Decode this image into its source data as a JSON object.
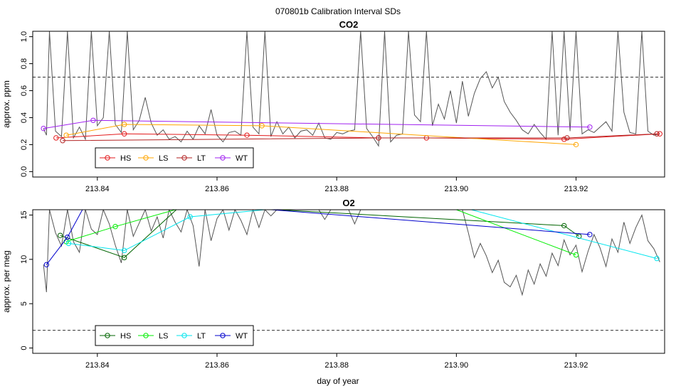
{
  "figure": {
    "title": "070801b   Calibration Interval SDs",
    "xlabel": "day of year",
    "x_ticks": [
      213.84,
      213.86,
      213.88,
      213.9,
      213.92
    ]
  },
  "chart_data": [
    {
      "type": "line",
      "title": "CO2",
      "ylabel": "approx. ppm",
      "xlim": [
        213.8292,
        213.9348
      ],
      "ylim": [
        -0.04,
        1.04
      ],
      "y_ticks": [
        0.0,
        0.2,
        0.4,
        0.6,
        0.8,
        1.0
      ],
      "y_tick_labels": [
        "0.0",
        "0.2",
        "0.4",
        "0.6",
        "0.8",
        "1.0"
      ],
      "threshold": 0.7,
      "legend_position": "bottom-left",
      "trace": {
        "name": "",
        "color": "#555555",
        "x": [
          213.831,
          213.8315,
          213.832,
          213.833,
          213.834,
          213.835,
          213.836,
          213.837,
          213.838,
          213.839,
          213.84,
          213.841,
          213.842,
          213.843,
          213.844,
          213.845,
          213.846,
          213.847,
          213.848,
          213.849,
          213.85,
          213.851,
          213.852,
          213.853,
          213.854,
          213.855,
          213.856,
          213.857,
          213.858,
          213.859,
          213.86,
          213.861,
          213.862,
          213.863,
          213.864,
          213.865,
          213.866,
          213.867,
          213.868,
          213.869,
          213.87,
          213.871,
          213.872,
          213.873,
          213.874,
          213.875,
          213.876,
          213.877,
          213.878,
          213.879,
          213.88,
          213.881,
          213.882,
          213.883,
          213.884,
          213.885,
          213.886,
          213.887,
          213.888,
          213.889,
          213.89,
          213.891,
          213.892,
          213.893,
          213.894,
          213.895,
          213.896,
          213.897,
          213.898,
          213.899,
          213.9,
          213.901,
          213.902,
          213.903,
          213.904,
          213.905,
          213.906,
          213.907,
          213.908,
          213.909,
          213.91,
          213.911,
          213.912,
          213.913,
          213.914,
          213.915,
          213.916,
          213.917,
          213.918,
          213.919,
          213.92,
          213.921,
          213.922,
          213.923,
          213.924,
          213.925,
          213.926,
          213.927,
          213.928,
          213.929,
          213.93,
          213.931,
          213.932,
          213.933,
          213.934
        ],
        "y": [
          0.32,
          0.27,
          1.04,
          0.3,
          0.26,
          1.04,
          0.25,
          0.33,
          0.24,
          1.04,
          0.34,
          0.4,
          1.04,
          0.35,
          0.29,
          1.04,
          0.31,
          0.38,
          0.55,
          0.36,
          0.27,
          0.31,
          0.24,
          0.26,
          0.22,
          0.3,
          0.24,
          0.34,
          0.28,
          0.46,
          0.27,
          0.22,
          0.29,
          0.3,
          0.27,
          1.04,
          0.33,
          0.28,
          1.04,
          0.26,
          0.37,
          0.28,
          0.33,
          0.25,
          0.3,
          0.31,
          0.27,
          0.36,
          0.25,
          0.24,
          0.29,
          0.28,
          0.3,
          0.31,
          1.04,
          0.32,
          0.26,
          0.19,
          1.04,
          0.22,
          0.27,
          0.28,
          1.04,
          0.42,
          0.37,
          1.04,
          0.34,
          0.5,
          0.39,
          0.6,
          0.36,
          0.67,
          0.41,
          0.58,
          0.69,
          0.74,
          0.62,
          0.7,
          0.52,
          0.44,
          0.38,
          0.31,
          0.28,
          0.35,
          0.29,
          0.24,
          1.04,
          0.27,
          1.04,
          0.3,
          1.04,
          0.28,
          0.31,
          0.29,
          0.33,
          0.37,
          0.3,
          1.04,
          0.44,
          0.29,
          0.28,
          1.04,
          0.3,
          0.27,
          0.28
        ]
      },
      "series": [
        {
          "name": "HS",
          "color": "#e31a1c",
          "x": [
            213.8331,
            213.8445,
            213.865,
            213.887,
            213.895,
            213.918,
            213.934
          ],
          "y": [
            0.25,
            0.28,
            0.27,
            0.25,
            0.25,
            0.24,
            0.28
          ]
        },
        {
          "name": "LS",
          "color": "#ffa500",
          "x": [
            213.8348,
            213.8445,
            213.8675,
            213.92
          ],
          "y": [
            0.27,
            0.35,
            0.34,
            0.2
          ]
        },
        {
          "name": "LT",
          "color": "#b22222",
          "x": [
            213.8342,
            213.887,
            213.9185,
            213.9335
          ],
          "y": [
            0.23,
            0.25,
            0.25,
            0.28
          ]
        },
        {
          "name": "WT",
          "color": "#a020f0",
          "x": [
            213.831,
            213.8393,
            213.9223
          ],
          "y": [
            0.32,
            0.38,
            0.33
          ]
        }
      ]
    },
    {
      "type": "line",
      "title": "O2",
      "ylabel": "approx. per meg",
      "xlim": [
        213.8292,
        213.9348
      ],
      "ylim": [
        -0.6,
        15.6
      ],
      "y_ticks": [
        0,
        5,
        10,
        15
      ],
      "y_tick_labels": [
        "0",
        "5",
        "10",
        "15"
      ],
      "threshold": 2,
      "legend_position": "bottom-left",
      "trace": {
        "name": "",
        "color": "#555555",
        "x": [
          213.831,
          213.8315,
          213.832,
          213.833,
          213.834,
          213.835,
          213.836,
          213.837,
          213.838,
          213.839,
          213.84,
          213.841,
          213.842,
          213.843,
          213.844,
          213.845,
          213.846,
          213.847,
          213.848,
          213.849,
          213.85,
          213.851,
          213.852,
          213.853,
          213.854,
          213.855,
          213.856,
          213.857,
          213.858,
          213.859,
          213.86,
          213.861,
          213.862,
          213.863,
          213.864,
          213.865,
          213.866,
          213.867,
          213.868,
          213.869,
          213.87,
          213.871,
          213.872,
          213.873,
          213.874,
          213.875,
          213.876,
          213.877,
          213.878,
          213.879,
          213.88,
          213.881,
          213.882,
          213.883,
          213.884,
          213.885,
          213.886,
          213.887,
          213.888,
          213.889,
          213.89,
          213.891,
          213.892,
          213.893,
          213.894,
          213.895,
          213.896,
          213.897,
          213.898,
          213.899,
          213.9,
          213.901,
          213.902,
          213.903,
          213.904,
          213.905,
          213.906,
          213.907,
          213.908,
          213.909,
          213.91,
          213.911,
          213.912,
          213.913,
          213.914,
          213.915,
          213.916,
          213.917,
          213.918,
          213.919,
          213.92,
          213.921,
          213.922,
          213.923,
          213.924,
          213.925,
          213.926,
          213.927,
          213.928,
          213.929,
          213.93,
          213.931,
          213.932,
          213.933,
          213.934
        ],
        "y": [
          9.4,
          6.3,
          15.6,
          13.0,
          11.5,
          15.6,
          12.0,
          10.8,
          15.6,
          13.4,
          12.8,
          15.6,
          14.0,
          11.6,
          9.6,
          15.6,
          12.6,
          14.1,
          15.6,
          13.2,
          14.8,
          12.4,
          15.6,
          14.2,
          13.1,
          15.6,
          13.8,
          9.2,
          15.6,
          12.1,
          14.6,
          15.6,
          13.3,
          15.6,
          14.4,
          12.8,
          15.6,
          13.6,
          15.6,
          14.9,
          15.6,
          15.6,
          15.6,
          15.6,
          15.6,
          15.6,
          15.6,
          15.6,
          14.5,
          15.6,
          15.6,
          15.6,
          15.6,
          14.0,
          15.6,
          15.6,
          15.6,
          15.6,
          15.6,
          15.6,
          15.6,
          15.6,
          15.6,
          15.6,
          15.6,
          15.6,
          15.6,
          15.6,
          15.6,
          15.6,
          15.6,
          15.6,
          13.0,
          10.2,
          11.8,
          10.4,
          8.5,
          9.9,
          7.4,
          6.9,
          8.2,
          6.0,
          8.8,
          7.2,
          9.5,
          8.1,
          10.7,
          9.3,
          12.2,
          10.5,
          11.6,
          8.6,
          10.9,
          12.8,
          11.3,
          9.2,
          12.3,
          10.8,
          14.2,
          11.8,
          13.6,
          15.0,
          12.1,
          11.2,
          9.7
        ]
      },
      "series": [
        {
          "name": "HS",
          "color": "#006400",
          "x": [
            213.8338,
            213.8445,
            213.8532,
            213.87,
            213.918,
            213.9205
          ],
          "y": [
            12.7,
            10.2,
            15.6,
            15.6,
            13.8,
            12.6
          ]
        },
        {
          "name": "LS",
          "color": "#00ee00",
          "x": [
            213.8348,
            213.843,
            213.853,
            213.9,
            213.92
          ],
          "y": [
            12.0,
            13.7,
            15.6,
            15.6,
            10.5
          ]
        },
        {
          "name": "LT",
          "color": "#00e5ee",
          "x": [
            213.8352,
            213.8445,
            213.8555,
            213.868,
            213.9025,
            213.9335
          ],
          "y": [
            11.8,
            11.0,
            14.8,
            15.6,
            15.6,
            10.1
          ]
        },
        {
          "name": "WT",
          "color": "#0000cd",
          "x": [
            213.8315,
            213.835,
            213.8375,
            213.869,
            213.9223
          ],
          "y": [
            9.4,
            12.5,
            15.6,
            15.6,
            12.8
          ]
        }
      ]
    }
  ]
}
